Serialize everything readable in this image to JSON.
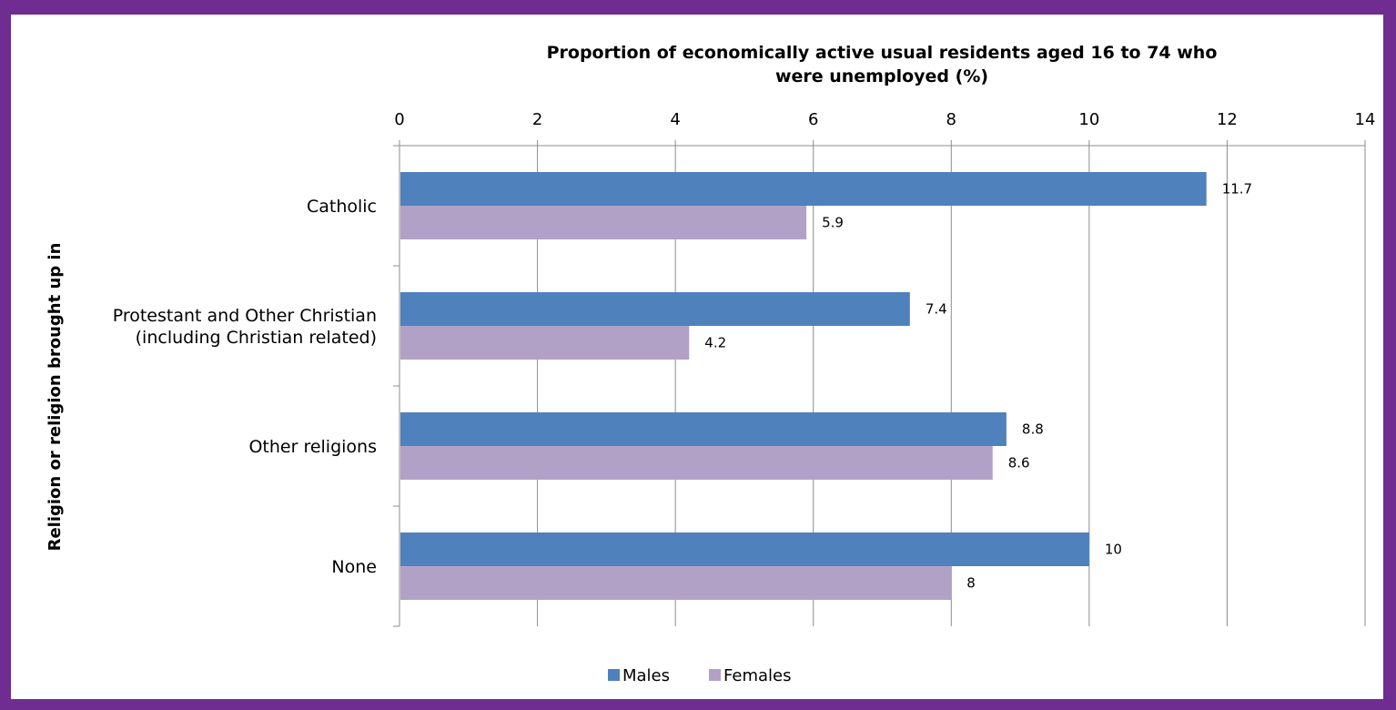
{
  "chart_data": {
    "type": "bar",
    "orientation": "horizontal",
    "title_lines": [
      "Proportion of economically  active usual residents aged 16 to 74 who",
      "were unemployed (%)"
    ],
    "ylabel": "Religion or religion brought up in",
    "categories": [
      [
        "Catholic"
      ],
      [
        "Protestant and Other Christian",
        "(including Christian related)"
      ],
      [
        "Other religions"
      ],
      [
        "None"
      ]
    ],
    "series": [
      {
        "name": "Males",
        "color": "#4f81bd",
        "values": [
          11.7,
          7.4,
          8.8,
          10
        ]
      },
      {
        "name": "Females",
        "color": "#b2a1c7",
        "values": [
          5.9,
          4.2,
          8.6,
          8
        ]
      }
    ],
    "xlim": [
      0,
      14
    ],
    "xticks": [
      "0",
      "2",
      "4",
      "6",
      "8",
      "10",
      "12",
      "14"
    ],
    "data_labels": [
      [
        "11.7",
        "7.4",
        "8.8",
        "10"
      ],
      [
        "5.9",
        "4.2",
        "8.6",
        "8"
      ]
    ],
    "axis_position": "top",
    "grid": true,
    "legend_position": "bottom"
  }
}
